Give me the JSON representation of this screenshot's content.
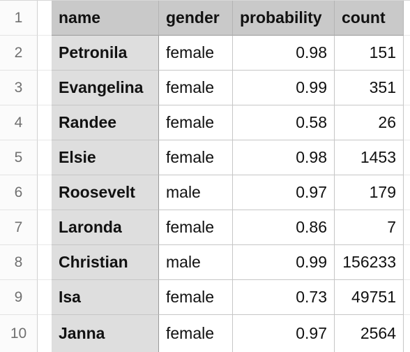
{
  "sheet": {
    "headers": {
      "name": "name",
      "gender": "gender",
      "probability": "probability",
      "count": "count"
    },
    "row_numbers": [
      "1",
      "2",
      "3",
      "4",
      "5",
      "6",
      "7",
      "8",
      "9",
      "10"
    ],
    "rows": [
      {
        "name": "Petronila",
        "gender": "female",
        "probability": "0.98",
        "count": "151"
      },
      {
        "name": "Evangelina",
        "gender": "female",
        "probability": "0.99",
        "count": "351"
      },
      {
        "name": "Randee",
        "gender": "female",
        "probability": "0.58",
        "count": "26"
      },
      {
        "name": "Elsie",
        "gender": "female",
        "probability": "0.98",
        "count": "1453"
      },
      {
        "name": "Roosevelt",
        "gender": "male",
        "probability": "0.97",
        "count": "179"
      },
      {
        "name": "Laronda",
        "gender": "female",
        "probability": "0.86",
        "count": "7"
      },
      {
        "name": "Christian",
        "gender": "male",
        "probability": "0.99",
        "count": "156233"
      },
      {
        "name": "Isa",
        "gender": "female",
        "probability": "0.73",
        "count": "49751"
      },
      {
        "name": "Janna",
        "gender": "female",
        "probability": "0.97",
        "count": "2564"
      }
    ]
  },
  "colors": {
    "header_bg": "#c9c9c9",
    "name_column_bg": "#dedede",
    "grid_line": "#c6c6c6",
    "row_number_text": "#707070"
  }
}
